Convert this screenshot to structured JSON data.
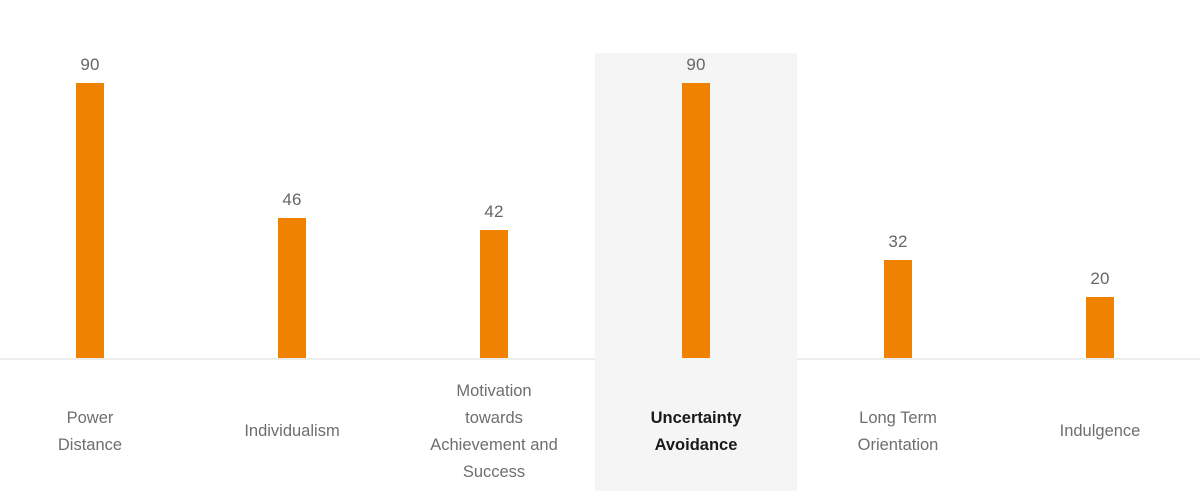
{
  "chart_data": {
    "type": "bar",
    "title": "",
    "xlabel": "",
    "ylabel": "",
    "categories": [
      "Power Distance",
      "Individualism",
      "Motivation towards Achievement and Success",
      "Uncertainty Avoidance",
      "Long Term Orientation",
      "Indulgence"
    ],
    "category_lines": [
      [
        "Power",
        "Distance"
      ],
      [
        "Individualism"
      ],
      [
        "Motivation",
        "towards",
        "Achievement and",
        "Success"
      ],
      [
        "Uncertainty",
        "Avoidance"
      ],
      [
        "Long Term",
        "Orientation"
      ],
      [
        "Indulgence"
      ]
    ],
    "values": [
      90,
      46,
      42,
      90,
      32,
      20
    ],
    "value_labels": [
      "90",
      "46",
      "42",
      "90",
      "32",
      "20"
    ],
    "highlighted_index": 3,
    "highlighted_category": "Uncertainty Avoidance",
    "ylim": [
      0,
      100
    ],
    "grid": false,
    "legend": false,
    "value_labels_shown": true,
    "colors": {
      "bar": "#EF8200",
      "highlight_background": "#F5F5F5",
      "axis_line": "#EDEDED",
      "value_label": "#666666",
      "category_label": "#6E6E6E",
      "highlighted_category_label": "#1A1A1A"
    }
  }
}
